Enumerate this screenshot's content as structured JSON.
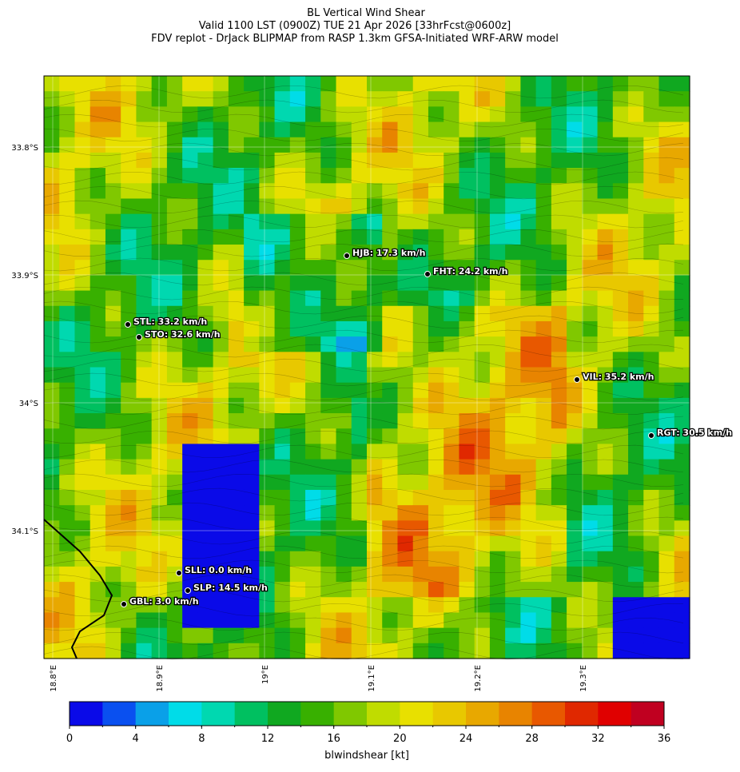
{
  "header": {
    "title": "BL Vertical Wind Shear",
    "subtitle": "Valid 1100 LST (0900Z) TUE 21 Apr 2026 [33hrFcst@0600z]",
    "source": "FDV replot - DrJack BLIPMAP from RASP 1.3km GFSA-Initiated WRF-ARW model"
  },
  "map": {
    "lat_labels": [
      "33.8°S",
      "33.9°S",
      "34°S",
      "34.1°S"
    ],
    "lon_labels": [
      "18.8°E",
      "18.9°E",
      "19°E",
      "19.1°E",
      "19.2°E",
      "19.3°E"
    ],
    "stations": [
      {
        "label": "HJB: 17.3 km/h"
      },
      {
        "label": "FHT: 24.2 km/h"
      },
      {
        "label": "STL: 33.2 km/h"
      },
      {
        "label": "STO: 32.6 km/h"
      },
      {
        "label": "VIL: 35.2 km/h"
      },
      {
        "label": "RGT: 30.5 km/h"
      },
      {
        "label": "SLL: 0.0 km/h"
      },
      {
        "label": "SLP: 14.5 km/h"
      },
      {
        "label": "GBL: 3.0 km/h"
      }
    ]
  },
  "colorbar": {
    "label": "blwindshear [kt]",
    "lim": [
      0,
      36
    ],
    "ticks": [
      0,
      4,
      8,
      12,
      16,
      20,
      24,
      28,
      32,
      36
    ],
    "colors": [
      "#0a0ae8",
      "#0a50f0",
      "#0aa0e8",
      "#00dce8",
      "#00d8b0",
      "#00c060",
      "#10a820",
      "#38b000",
      "#80c800",
      "#c0dc00",
      "#e8e000",
      "#e8c800",
      "#e8a800",
      "#e88400",
      "#e85800",
      "#e02800",
      "#e00000",
      "#c00020"
    ]
  }
}
